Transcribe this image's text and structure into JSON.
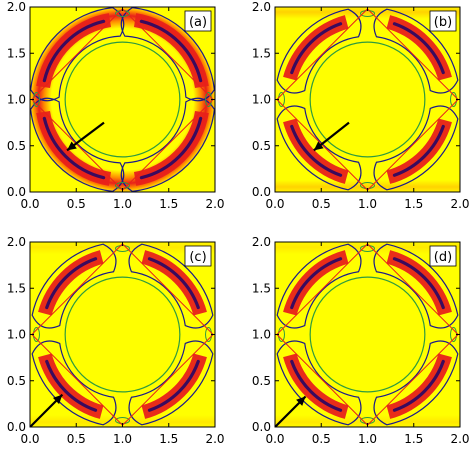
{
  "figure": {
    "colors": {
      "background": "#ffff00",
      "ring": "#e8211a",
      "ring_core": "#3a0a5e",
      "contour": "#1a1a8c",
      "square": "#e8211a",
      "circle": "#2e9b3f",
      "arrow": "#000000"
    }
  },
  "chart_data": [
    {
      "panel": "(a)",
      "type": "heatmap",
      "xlim": [
        0.0,
        2.0
      ],
      "ylim": [
        0.0,
        2.0
      ],
      "xticks": [
        "0.0",
        "0.5",
        "1.0",
        "1.5",
        "2.0"
      ],
      "yticks": [
        "0.0",
        "0.5",
        "1.0",
        "1.5",
        "2.0"
      ],
      "circle": {
        "cx": 1.0,
        "cy": 1.0,
        "r": 0.62
      },
      "square_vertices": [
        [
          1.0,
          1.98
        ],
        [
          1.98,
          1.0
        ],
        [
          1.0,
          0.02
        ],
        [
          0.02,
          1.0
        ]
      ],
      "arrow": {
        "from": [
          0.8,
          0.75
        ],
        "to": [
          0.4,
          0.45
        ]
      },
      "feature": "continuous ring"
    },
    {
      "panel": "(b)",
      "type": "heatmap",
      "xlim": [
        0.0,
        2.0
      ],
      "ylim": [
        0.0,
        2.0
      ],
      "xticks": [
        "0.0",
        "0.5",
        "1.0",
        "1.5",
        "2.0"
      ],
      "yticks": [
        "0.0",
        "0.5",
        "1.0",
        "1.5",
        "2.0"
      ],
      "circle": {
        "cx": 1.0,
        "cy": 1.0,
        "r": 0.62
      },
      "square_vertices": [
        [
          1.0,
          1.98
        ],
        [
          1.98,
          1.0
        ],
        [
          1.0,
          0.02
        ],
        [
          0.02,
          1.0
        ]
      ],
      "arrow": {
        "from": [
          0.8,
          0.75
        ],
        "to": [
          0.42,
          0.45
        ]
      },
      "feature": "four arcs"
    },
    {
      "panel": "(c)",
      "type": "heatmap",
      "xlim": [
        0.0,
        2.0
      ],
      "ylim": [
        0.0,
        2.0
      ],
      "xticks": [
        "0.0",
        "0.5",
        "1.0",
        "1.5",
        "2.0"
      ],
      "yticks": [
        "0.0",
        "0.5",
        "1.0",
        "1.5",
        "2.0"
      ],
      "circle": {
        "cx": 1.0,
        "cy": 1.0,
        "r": 0.62
      },
      "square_vertices": [
        [
          1.0,
          1.98
        ],
        [
          1.98,
          1.0
        ],
        [
          1.0,
          0.02
        ],
        [
          0.02,
          1.0
        ]
      ],
      "arrow": {
        "from": [
          0.0,
          0.0
        ],
        "to": [
          0.35,
          0.35
        ]
      },
      "feature": "four arcs"
    },
    {
      "panel": "(d)",
      "type": "heatmap",
      "xlim": [
        0.0,
        2.0
      ],
      "ylim": [
        0.0,
        2.0
      ],
      "xticks": [
        "0.0",
        "0.5",
        "1.0",
        "1.5",
        "2.0"
      ],
      "yticks": [
        "0.0",
        "0.5",
        "1.0",
        "1.5",
        "2.0"
      ],
      "circle": {
        "cx": 1.0,
        "cy": 1.0,
        "r": 0.62
      },
      "square_vertices": [
        [
          1.0,
          1.98
        ],
        [
          1.98,
          1.0
        ],
        [
          1.0,
          0.02
        ],
        [
          0.02,
          1.0
        ]
      ],
      "arrow": {
        "from": [
          0.0,
          0.0
        ],
        "to": [
          0.33,
          0.33
        ]
      },
      "feature": "four arcs"
    }
  ]
}
